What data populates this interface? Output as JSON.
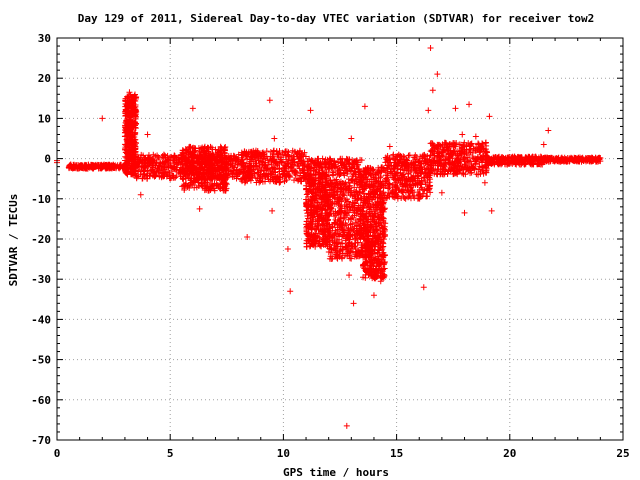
{
  "chart_data": {
    "type": "scatter",
    "title": "Day 129 of 2011, Sidereal Day-to-day VTEC variation (SDTVAR) for receiver tow2",
    "xlabel": "GPS time / hours",
    "ylabel": "SDTVAR / TECUs",
    "xlim": [
      0,
      25
    ],
    "ylim": [
      -70,
      30
    ],
    "xticks": [
      "0",
      "5",
      "10",
      "15",
      "20",
      "25"
    ],
    "yticks": [
      "30",
      "20",
      "10",
      "0",
      "-10",
      "-20",
      "-30",
      "-40",
      "-50",
      "-60",
      "-70"
    ],
    "grid": true,
    "marker": "+",
    "point_color": "#ff0000",
    "dense_bands": [
      {
        "x": [
          0.5,
          3.0
        ],
        "y": [
          -2.5,
          -1.5
        ]
      },
      {
        "x": [
          3.0,
          3.5
        ],
        "y": [
          -4,
          16
        ]
      },
      {
        "x": [
          3.5,
          8.0
        ],
        "y": [
          -5,
          1
        ]
      },
      {
        "x": [
          5.5,
          7.5
        ],
        "y": [
          -8,
          3
        ]
      },
      {
        "x": [
          8.0,
          11.0
        ],
        "y": [
          -6,
          2
        ]
      },
      {
        "x": [
          11.0,
          12.0
        ],
        "y": [
          -22,
          0
        ]
      },
      {
        "x": [
          12.0,
          13.5
        ],
        "y": [
          -25,
          0
        ]
      },
      {
        "x": [
          13.5,
          14.5
        ],
        "y": [
          -30,
          -2
        ]
      },
      {
        "x": [
          14.5,
          16.5
        ],
        "y": [
          -10,
          1
        ]
      },
      {
        "x": [
          16.5,
          19.0
        ],
        "y": [
          -4,
          4
        ]
      },
      {
        "x": [
          19.0,
          21.5
        ],
        "y": [
          -1.5,
          0.5
        ]
      },
      {
        "x": [
          21.5,
          24.0
        ],
        "y": [
          -0.8,
          0.3
        ]
      }
    ],
    "points": [
      [
        0.0,
        -0.5
      ],
      [
        0.0,
        -1.0
      ],
      [
        0.6,
        -1.5
      ],
      [
        2.0,
        10.0
      ],
      [
        3.2,
        16.5
      ],
      [
        3.3,
        14.5
      ],
      [
        3.7,
        -9.0
      ],
      [
        4.0,
        6.0
      ],
      [
        6.0,
        12.5
      ],
      [
        6.3,
        -12.5
      ],
      [
        8.4,
        -19.5
      ],
      [
        9.4,
        14.5
      ],
      [
        9.5,
        -13.0
      ],
      [
        9.6,
        5.0
      ],
      [
        10.2,
        -22.5
      ],
      [
        10.3,
        -33.0
      ],
      [
        11.2,
        12.0
      ],
      [
        12.0,
        -12.0
      ],
      [
        13.0,
        5.0
      ],
      [
        13.6,
        13.0
      ],
      [
        12.8,
        -66.5
      ],
      [
        13.1,
        -36.0
      ],
      [
        12.9,
        -29.0
      ],
      [
        14.0,
        -34.0
      ],
      [
        14.3,
        -30.5
      ],
      [
        15.4,
        -10.0
      ],
      [
        16.2,
        -32.0
      ],
      [
        16.5,
        27.5
      ],
      [
        16.8,
        21.0
      ],
      [
        16.6,
        17.0
      ],
      [
        16.4,
        12.0
      ],
      [
        17.0,
        -8.5
      ],
      [
        17.6,
        12.5
      ],
      [
        17.9,
        6.0
      ],
      [
        18.2,
        13.5
      ],
      [
        18.5,
        5.5
      ],
      [
        19.1,
        10.5
      ],
      [
        19.2,
        -13.0
      ],
      [
        18.0,
        -13.5
      ],
      [
        18.9,
        -6.0
      ],
      [
        21.7,
        7.0
      ],
      [
        21.5,
        3.5
      ],
      [
        14.7,
        3.0
      ],
      [
        15.2,
        -8.0
      ],
      [
        11.8,
        -1.5
      ],
      [
        12.4,
        -18.0
      ],
      [
        13.3,
        -23.0
      ],
      [
        10.6,
        -5.0
      ],
      [
        7.2,
        -2.0
      ],
      [
        5.2,
        -2.5
      ]
    ]
  }
}
